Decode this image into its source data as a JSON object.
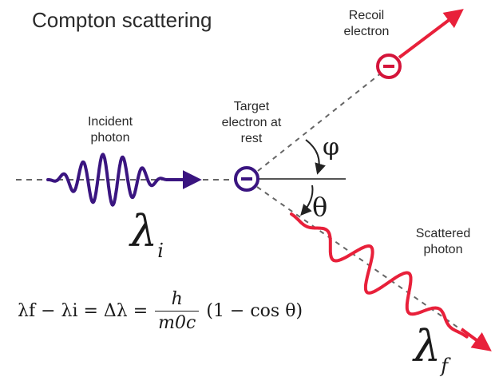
{
  "title": "Compton scattering",
  "labels": {
    "incident": "Incident photon",
    "target": "Target electron at rest",
    "recoil": "Recoil electron",
    "scattered": "Scattered photon"
  },
  "symbols": {
    "phi": "φ",
    "theta": "θ",
    "lambda": "λ",
    "sub_i": "i",
    "sub_f": "f"
  },
  "formula": {
    "lhs": "λf − λi = Δλ =",
    "numerator": "h",
    "denominator": "m0c",
    "rhs": "(1 − cos θ)"
  },
  "colors": {
    "incident_wave": "#3a1580",
    "scattered_wave": "#e8203a",
    "recoil_arrow": "#e8203a",
    "electron_outline": "#3a1580",
    "recoil_electron_outline": "#d4143a",
    "baseline": "#555555",
    "dashes": "#555555"
  },
  "icons": {
    "target_electron": "minus-circle-icon",
    "recoil_electron": "minus-circle-icon"
  }
}
